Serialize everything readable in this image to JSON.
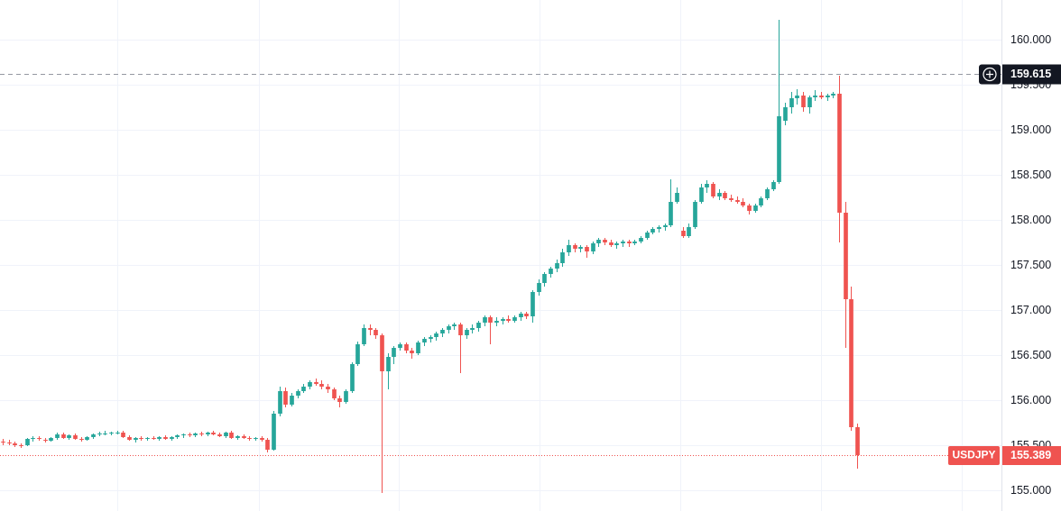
{
  "chart_data": {
    "type": "candlestick",
    "symbol": "USDJPY",
    "last_price": 155.389,
    "crosshair_price": 159.615,
    "up_color": "#26a69a",
    "down_color": "#ef5350",
    "ylim": [
      154.77,
      160.44
    ],
    "yticks": [
      {
        "value": 155,
        "label": "155.000"
      },
      {
        "value": 155.5,
        "label": "155.500"
      },
      {
        "value": 156,
        "label": "156.000"
      },
      {
        "value": 156.5,
        "label": "156.500"
      },
      {
        "value": 157,
        "label": "157.000"
      },
      {
        "value": 157.5,
        "label": "157.500"
      },
      {
        "value": 158,
        "label": "158.000"
      },
      {
        "value": 158.5,
        "label": "158.500"
      },
      {
        "value": 159,
        "label": "159.000"
      },
      {
        "value": 159.5,
        "label": "159.500"
      },
      {
        "value": 160,
        "label": "160.000"
      }
    ],
    "grid": true,
    "ohlc": [
      [
        155.54,
        155.57,
        155.5,
        155.53
      ],
      [
        155.53,
        155.56,
        155.5,
        155.52
      ],
      [
        155.52,
        155.54,
        155.48,
        155.5
      ],
      [
        155.5,
        155.52,
        155.47,
        155.49
      ],
      [
        155.5,
        155.58,
        155.49,
        155.57
      ],
      [
        155.57,
        155.6,
        155.54,
        155.58
      ],
      [
        155.58,
        155.6,
        155.55,
        155.57
      ],
      [
        155.56,
        155.58,
        155.53,
        155.55
      ],
      [
        155.55,
        155.59,
        155.54,
        155.58
      ],
      [
        155.58,
        155.64,
        155.56,
        155.62
      ],
      [
        155.62,
        155.64,
        155.57,
        155.58
      ],
      [
        155.58,
        155.62,
        155.56,
        155.61
      ],
      [
        155.61,
        155.63,
        155.56,
        155.57
      ],
      [
        155.57,
        155.59,
        155.54,
        155.56
      ],
      [
        155.56,
        155.6,
        155.55,
        155.59
      ],
      [
        155.59,
        155.63,
        155.57,
        155.62
      ],
      [
        155.62,
        155.65,
        155.6,
        155.63
      ],
      [
        155.63,
        155.66,
        155.61,
        155.63
      ],
      [
        155.63,
        155.65,
        155.61,
        155.64
      ],
      [
        155.64,
        155.66,
        155.62,
        155.64
      ],
      [
        155.64,
        155.66,
        155.58,
        155.59
      ],
      [
        155.59,
        155.61,
        155.55,
        155.56
      ],
      [
        155.56,
        155.59,
        155.53,
        155.58
      ],
      [
        155.58,
        155.6,
        155.55,
        155.57
      ],
      [
        155.57,
        155.59,
        155.55,
        155.58
      ],
      [
        155.58,
        155.6,
        155.56,
        155.57
      ],
      [
        155.57,
        155.6,
        155.55,
        155.59
      ],
      [
        155.59,
        155.61,
        155.56,
        155.57
      ],
      [
        155.57,
        155.6,
        155.55,
        155.59
      ],
      [
        155.59,
        155.62,
        155.57,
        155.61
      ],
      [
        155.61,
        155.63,
        155.58,
        155.62
      ],
      [
        155.62,
        155.64,
        155.59,
        155.61
      ],
      [
        155.61,
        155.64,
        155.59,
        155.63
      ],
      [
        155.63,
        155.65,
        155.6,
        155.62
      ],
      [
        155.62,
        155.65,
        155.6,
        155.64
      ],
      [
        155.64,
        155.66,
        155.61,
        155.62
      ],
      [
        155.62,
        155.64,
        155.59,
        155.6
      ],
      [
        155.6,
        155.65,
        155.58,
        155.64
      ],
      [
        155.64,
        155.66,
        155.57,
        155.58
      ],
      [
        155.58,
        155.61,
        155.56,
        155.6
      ],
      [
        155.6,
        155.62,
        155.57,
        155.58
      ],
      [
        155.58,
        155.6,
        155.55,
        155.57
      ],
      [
        155.57,
        155.59,
        155.55,
        155.58
      ],
      [
        155.58,
        155.6,
        155.54,
        155.56
      ],
      [
        155.56,
        155.58,
        155.42,
        155.45
      ],
      [
        155.45,
        155.88,
        155.44,
        155.85
      ],
      [
        155.85,
        156.15,
        155.82,
        156.1
      ],
      [
        156.1,
        156.14,
        155.92,
        155.95
      ],
      [
        155.95,
        156.08,
        155.93,
        156.05
      ],
      [
        156.05,
        156.12,
        156.02,
        156.1
      ],
      [
        156.1,
        156.18,
        156.08,
        156.15
      ],
      [
        156.15,
        156.22,
        156.12,
        156.2
      ],
      [
        156.2,
        156.24,
        156.16,
        156.18
      ],
      [
        156.18,
        156.22,
        156.12,
        156.15
      ],
      [
        156.15,
        156.18,
        156.08,
        156.12
      ],
      [
        156.12,
        156.14,
        156.0,
        156.02
      ],
      [
        156.02,
        156.05,
        155.92,
        155.98
      ],
      [
        155.98,
        156.12,
        155.96,
        156.1
      ],
      [
        156.1,
        156.42,
        156.08,
        156.4
      ],
      [
        156.4,
        156.65,
        156.38,
        156.62
      ],
      [
        156.62,
        156.84,
        156.6,
        156.8
      ],
      [
        156.8,
        156.84,
        156.72,
        156.78
      ],
      [
        156.78,
        156.8,
        156.68,
        156.72
      ],
      [
        156.72,
        156.74,
        154.97,
        156.32
      ],
      [
        156.32,
        156.52,
        156.12,
        156.48
      ],
      [
        156.48,
        156.6,
        156.4,
        156.58
      ],
      [
        156.58,
        156.64,
        156.55,
        156.62
      ],
      [
        156.62,
        156.64,
        156.52,
        156.55
      ],
      [
        156.55,
        156.58,
        156.46,
        156.52
      ],
      [
        156.52,
        156.66,
        156.5,
        156.64
      ],
      [
        156.64,
        156.7,
        156.6,
        156.68
      ],
      [
        156.68,
        156.72,
        156.64,
        156.7
      ],
      [
        156.7,
        156.76,
        156.66,
        156.74
      ],
      [
        156.74,
        156.8,
        156.7,
        156.78
      ],
      [
        156.78,
        156.84,
        156.74,
        156.82
      ],
      [
        156.82,
        156.86,
        156.78,
        156.84
      ],
      [
        156.84,
        156.86,
        156.3,
        156.72
      ],
      [
        156.72,
        156.8,
        156.68,
        156.78
      ],
      [
        156.78,
        156.84,
        156.74,
        156.8
      ],
      [
        156.8,
        156.88,
        156.76,
        156.86
      ],
      [
        156.86,
        156.94,
        156.82,
        156.92
      ],
      [
        156.92,
        156.94,
        156.62,
        156.86
      ],
      [
        156.86,
        156.92,
        156.82,
        156.88
      ],
      [
        156.88,
        156.92,
        156.84,
        156.9
      ],
      [
        156.9,
        156.94,
        156.86,
        156.88
      ],
      [
        156.88,
        156.94,
        156.86,
        156.92
      ],
      [
        156.92,
        156.98,
        156.88,
        156.96
      ],
      [
        156.96,
        156.98,
        156.9,
        156.93
      ],
      [
        156.93,
        157.22,
        156.86,
        157.2
      ],
      [
        157.2,
        157.34,
        157.16,
        157.3
      ],
      [
        157.3,
        157.42,
        157.26,
        157.4
      ],
      [
        157.4,
        157.48,
        157.36,
        157.46
      ],
      [
        157.46,
        157.56,
        157.42,
        157.52
      ],
      [
        157.52,
        157.68,
        157.48,
        157.64
      ],
      [
        157.64,
        157.78,
        157.6,
        157.72
      ],
      [
        157.72,
        157.74,
        157.64,
        157.68
      ],
      [
        157.68,
        157.72,
        157.64,
        157.7
      ],
      [
        157.7,
        157.72,
        157.58,
        157.65
      ],
      [
        157.65,
        157.76,
        157.62,
        157.74
      ],
      [
        157.74,
        157.8,
        157.7,
        157.78
      ],
      [
        157.78,
        157.8,
        157.72,
        157.75
      ],
      [
        157.75,
        157.78,
        157.7,
        157.72
      ],
      [
        157.72,
        157.76,
        157.68,
        157.74
      ],
      [
        157.74,
        157.78,
        157.7,
        157.76
      ],
      [
        157.76,
        157.78,
        157.7,
        157.74
      ],
      [
        157.74,
        157.78,
        157.72,
        157.76
      ],
      [
        157.76,
        157.82,
        157.74,
        157.8
      ],
      [
        157.8,
        157.88,
        157.78,
        157.86
      ],
      [
        157.86,
        157.92,
        157.84,
        157.9
      ],
      [
        157.9,
        157.94,
        157.86,
        157.92
      ],
      [
        157.92,
        157.96,
        157.88,
        157.94
      ],
      [
        157.94,
        158.45,
        157.92,
        158.2
      ],
      [
        158.2,
        158.36,
        158.18,
        158.3
      ],
      [
        157.88,
        157.92,
        157.8,
        157.82
      ],
      [
        157.82,
        157.96,
        157.8,
        157.92
      ],
      [
        157.92,
        158.22,
        157.9,
        158.2
      ],
      [
        158.2,
        158.4,
        158.18,
        158.36
      ],
      [
        158.36,
        158.44,
        158.3,
        158.4
      ],
      [
        158.4,
        158.42,
        158.24,
        158.26
      ],
      [
        158.26,
        158.34,
        158.22,
        158.3
      ],
      [
        158.3,
        158.32,
        158.22,
        158.24
      ],
      [
        158.24,
        158.28,
        158.2,
        158.22
      ],
      [
        158.22,
        158.26,
        158.18,
        158.2
      ],
      [
        158.2,
        158.24,
        158.14,
        158.16
      ],
      [
        158.16,
        158.18,
        158.06,
        158.1
      ],
      [
        158.1,
        158.18,
        158.08,
        158.16
      ],
      [
        158.16,
        158.26,
        158.14,
        158.24
      ],
      [
        158.24,
        158.36,
        158.22,
        158.34
      ],
      [
        158.34,
        158.44,
        158.32,
        158.42
      ],
      [
        158.42,
        160.22,
        158.4,
        159.15
      ],
      [
        159.1,
        159.3,
        159.05,
        159.25
      ],
      [
        159.25,
        159.42,
        159.18,
        159.35
      ],
      [
        159.35,
        159.45,
        159.28,
        159.38
      ],
      [
        159.38,
        159.42,
        159.2,
        159.25
      ],
      [
        159.25,
        159.38,
        159.18,
        159.36
      ],
      [
        159.36,
        159.44,
        159.32,
        159.38
      ],
      [
        159.38,
        159.42,
        159.34,
        159.36
      ],
      [
        159.36,
        159.4,
        159.32,
        159.38
      ],
      [
        159.38,
        159.42,
        159.35,
        159.4
      ],
      [
        159.4,
        159.6,
        157.75,
        158.08
      ],
      [
        158.08,
        158.2,
        156.58,
        157.12
      ],
      [
        157.12,
        157.26,
        155.66,
        155.7
      ],
      [
        155.7,
        155.74,
        155.24,
        155.39
      ]
    ]
  }
}
